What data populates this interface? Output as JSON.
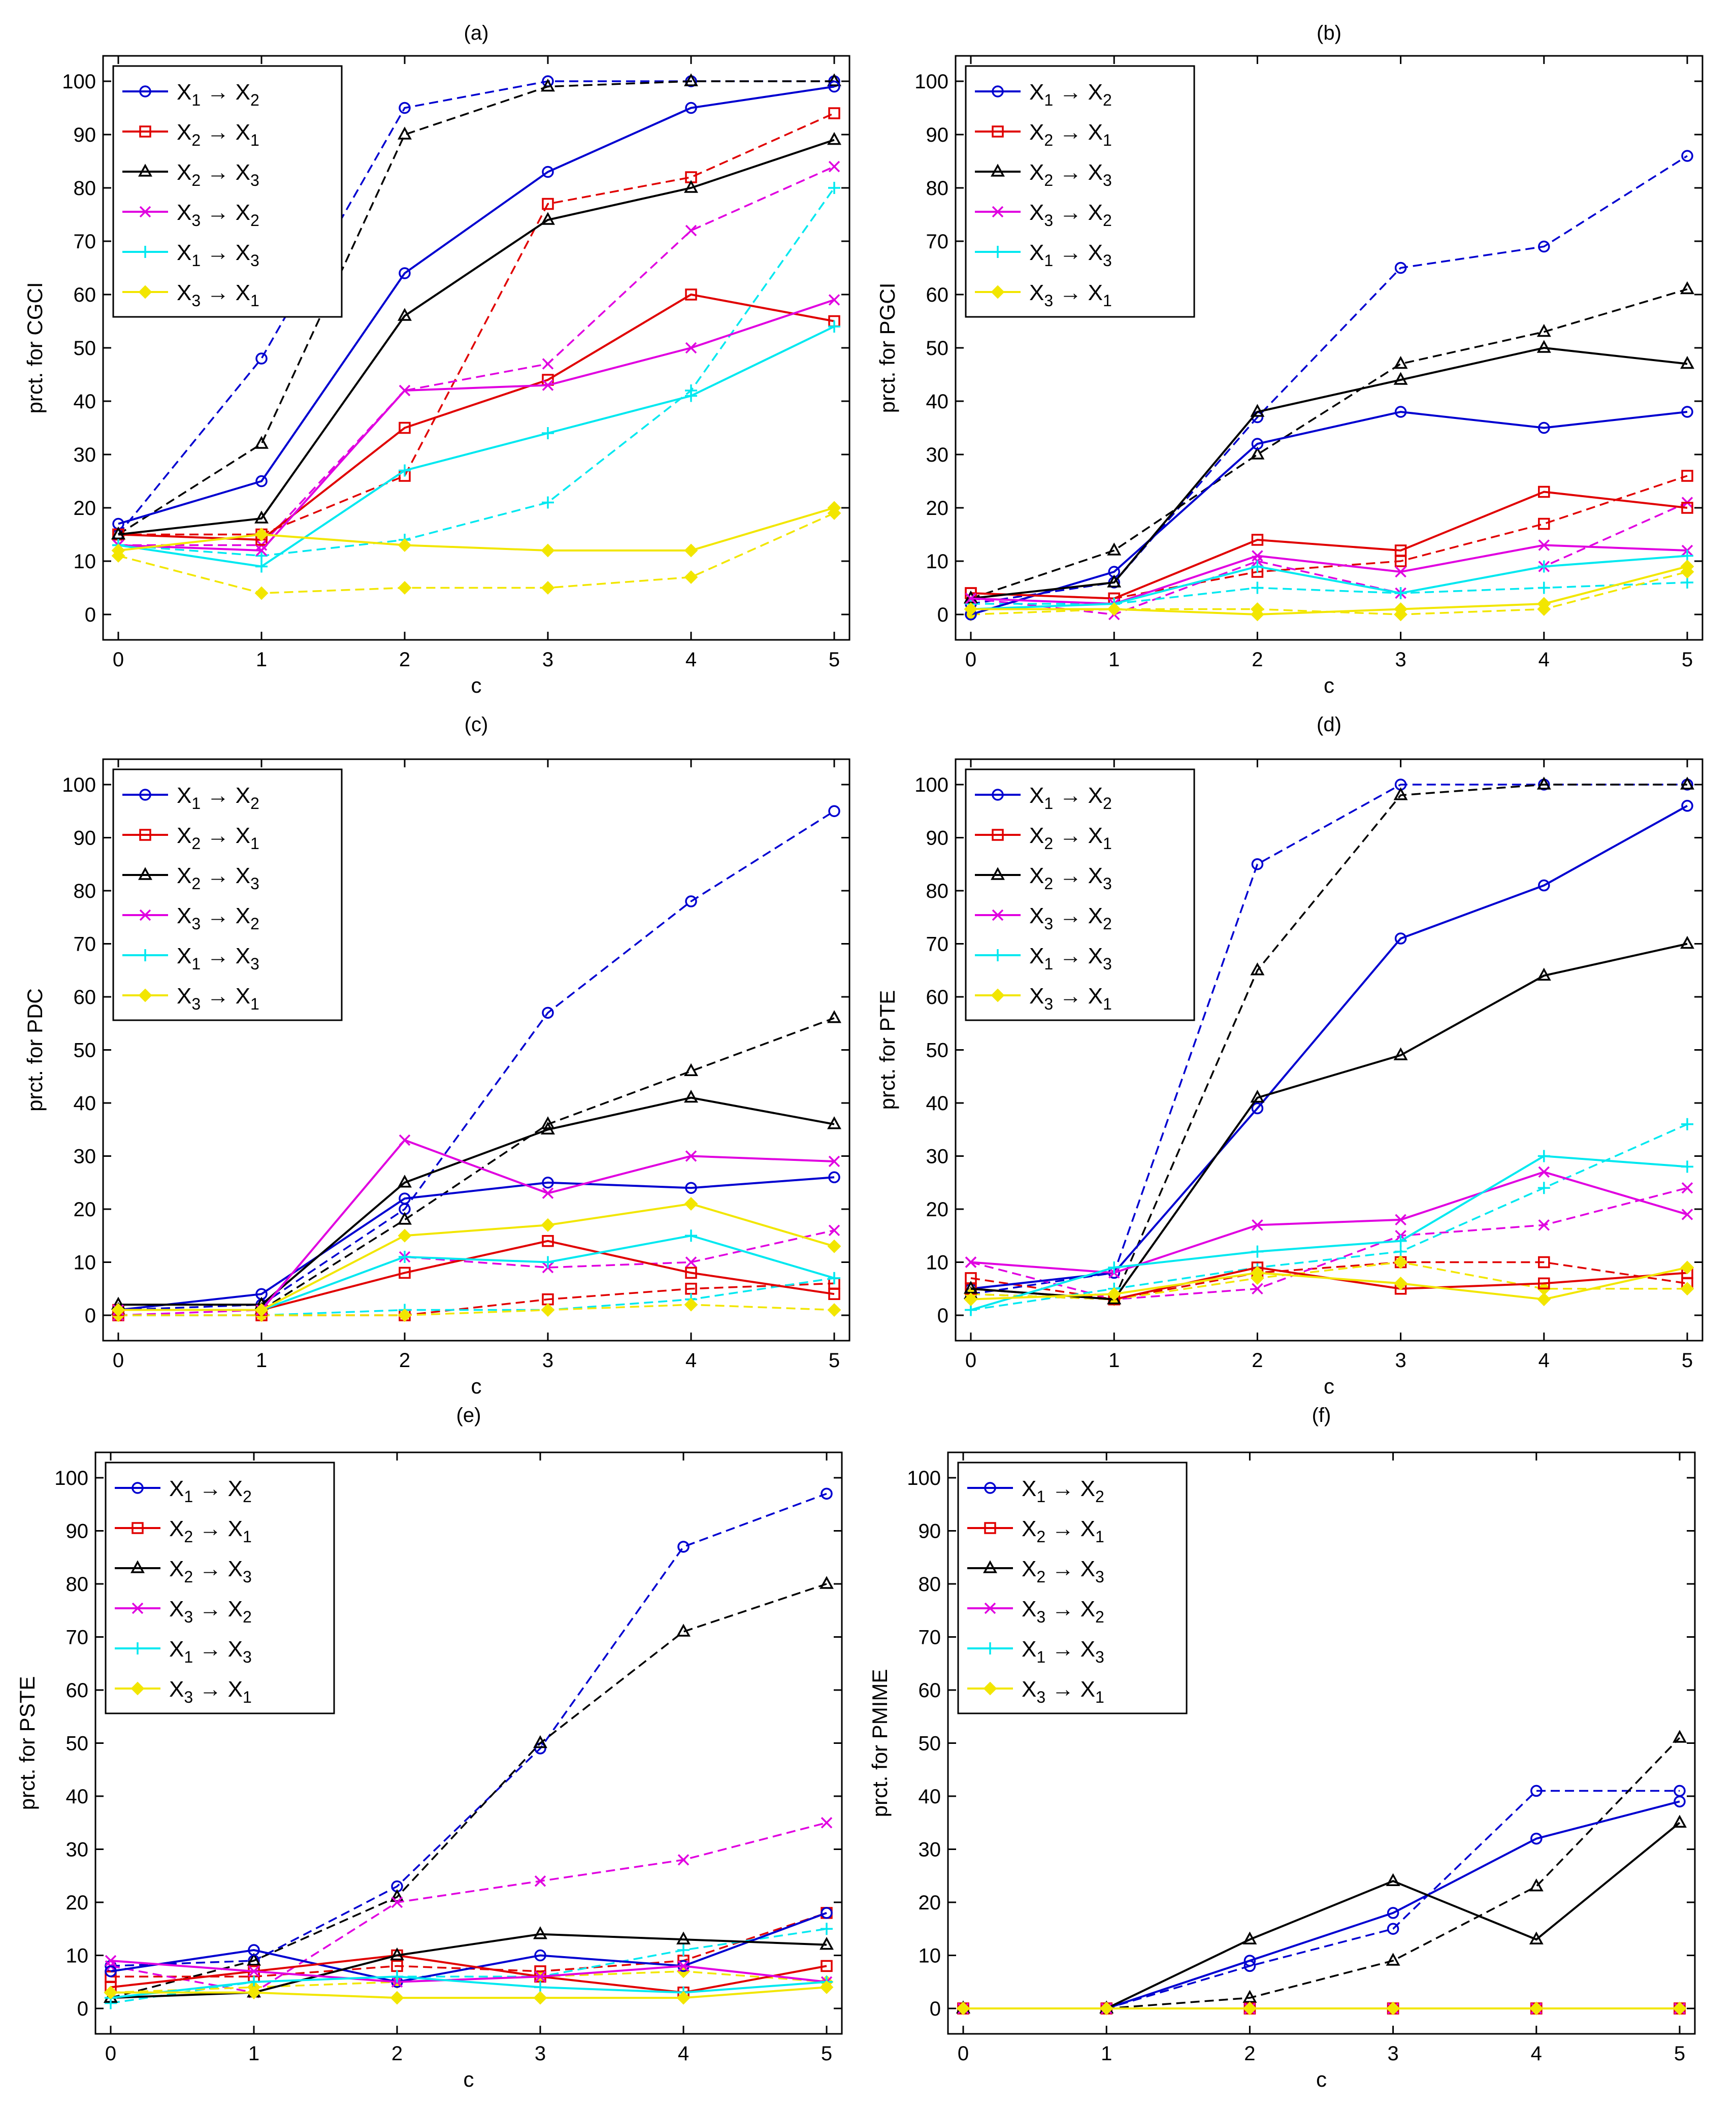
{
  "legend_labels": [
    {
      "a": "X",
      "as": "1",
      "b": "X",
      "bs": "2",
      "color": "#0000d0",
      "marker": "circle"
    },
    {
      "a": "X",
      "as": "2",
      "b": "X",
      "bs": "1",
      "color": "#e00000",
      "marker": "square"
    },
    {
      "a": "X",
      "as": "2",
      "b": "X",
      "bs": "3",
      "color": "#000000",
      "marker": "triangle"
    },
    {
      "a": "X",
      "as": "3",
      "b": "X",
      "bs": "2",
      "color": "#e000e0",
      "marker": "x"
    },
    {
      "a": "X",
      "as": "1",
      "b": "X",
      "bs": "3",
      "color": "#00e8f0",
      "marker": "plus"
    },
    {
      "a": "X",
      "as": "3",
      "b": "X",
      "bs": "1",
      "color": "#f2e600",
      "marker": "diamond"
    }
  ],
  "arrow": "→",
  "chart_data": [
    {
      "type": "line",
      "panel": "(a)",
      "xlabel": "c",
      "ylabel": "prct. for CGCI",
      "x": [
        0,
        1,
        2,
        3,
        4,
        5
      ],
      "xlim": [
        0,
        5
      ],
      "ylim": [
        0,
        100
      ],
      "yticks": [
        0,
        10,
        20,
        30,
        40,
        50,
        60,
        70,
        80,
        90,
        100
      ],
      "series": [
        {
          "name": "X1→X2 solid",
          "values": [
            17,
            25,
            64,
            83,
            95,
            99
          ]
        },
        {
          "name": "X1→X2 dashed",
          "values": [
            15,
            48,
            95,
            100,
            100,
            100
          ]
        },
        {
          "name": "X2→X1 solid",
          "values": [
            15,
            14,
            35,
            44,
            60,
            55
          ]
        },
        {
          "name": "X2→X1 dashed",
          "values": [
            15,
            15,
            26,
            77,
            82,
            94
          ]
        },
        {
          "name": "X2→X3 solid",
          "values": [
            15,
            18,
            56,
            74,
            80,
            89
          ]
        },
        {
          "name": "X2→X3 dashed",
          "values": [
            15,
            32,
            90,
            99,
            100,
            100
          ]
        },
        {
          "name": "X3→X2 solid",
          "values": [
            13,
            12,
            42,
            43,
            50,
            59
          ]
        },
        {
          "name": "X3→X2 dashed",
          "values": [
            13,
            13,
            42,
            47,
            72,
            84
          ]
        },
        {
          "name": "X1→X3 solid",
          "values": [
            13,
            9,
            27,
            34,
            41,
            54
          ]
        },
        {
          "name": "X1→X3 dashed",
          "values": [
            13,
            11,
            14,
            21,
            42,
            80
          ]
        },
        {
          "name": "X3→X1 solid",
          "values": [
            12,
            15,
            13,
            12,
            12,
            20
          ]
        },
        {
          "name": "X3→X1 dashed",
          "values": [
            11,
            4,
            5,
            5,
            7,
            19
          ]
        }
      ]
    },
    {
      "type": "line",
      "panel": "(b)",
      "xlabel": "c",
      "ylabel": "prct. for PGCI",
      "x": [
        0,
        1,
        2,
        3,
        4,
        5
      ],
      "xlim": [
        0,
        5
      ],
      "ylim": [
        0,
        100
      ],
      "yticks": [
        0,
        10,
        20,
        30,
        40,
        50,
        60,
        70,
        80,
        90,
        100
      ],
      "series": [
        {
          "name": "X1→X2 solid",
          "values": [
            0,
            8,
            32,
            38,
            35,
            38
          ]
        },
        {
          "name": "X1→X2 dashed",
          "values": [
            2,
            6,
            37,
            65,
            69,
            86
          ]
        },
        {
          "name": "X2→X1 solid",
          "values": [
            4,
            3,
            14,
            12,
            23,
            20
          ]
        },
        {
          "name": "X2→X1 dashed",
          "values": [
            4,
            3,
            8,
            10,
            17,
            26
          ]
        },
        {
          "name": "X2→X3 solid",
          "values": [
            3,
            6,
            38,
            44,
            50,
            47
          ]
        },
        {
          "name": "X2→X3 dashed",
          "values": [
            3,
            12,
            30,
            47,
            53,
            61
          ]
        },
        {
          "name": "X3→X2 solid",
          "values": [
            3,
            2,
            11,
            8,
            13,
            12
          ]
        },
        {
          "name": "X3→X2 dashed",
          "values": [
            3,
            0,
            10,
            4,
            9,
            21
          ]
        },
        {
          "name": "X1→X3 solid",
          "values": [
            1,
            2,
            9,
            4,
            9,
            11
          ]
        },
        {
          "name": "X1→X3 dashed",
          "values": [
            2,
            2,
            5,
            4,
            5,
            6
          ]
        },
        {
          "name": "X3→X1 solid",
          "values": [
            1,
            1,
            0,
            1,
            2,
            9
          ]
        },
        {
          "name": "X3→X1 dashed",
          "values": [
            0,
            1,
            1,
            0,
            1,
            8
          ]
        }
      ]
    },
    {
      "type": "line",
      "panel": "(c)",
      "xlabel": "c",
      "ylabel": "prct. for PDC",
      "x": [
        0,
        1,
        2,
        3,
        4,
        5
      ],
      "xlim": [
        0,
        5
      ],
      "ylim": [
        0,
        100
      ],
      "yticks": [
        0,
        10,
        20,
        30,
        40,
        50,
        60,
        70,
        80,
        90,
        100
      ],
      "series": [
        {
          "name": "X1→X2 solid",
          "values": [
            1,
            4,
            22,
            25,
            24,
            26
          ]
        },
        {
          "name": "X1→X2 dashed",
          "values": [
            1,
            2,
            20,
            57,
            78,
            95
          ]
        },
        {
          "name": "X2→X1 solid",
          "values": [
            1,
            1,
            8,
            14,
            8,
            4
          ]
        },
        {
          "name": "X2→X1 dashed",
          "values": [
            0,
            0,
            0,
            3,
            5,
            6
          ]
        },
        {
          "name": "X2→X3 solid",
          "values": [
            2,
            2,
            25,
            35,
            41,
            36
          ]
        },
        {
          "name": "X2→X3 dashed",
          "values": [
            1,
            1,
            18,
            36,
            46,
            56
          ]
        },
        {
          "name": "X3→X2 solid",
          "values": [
            1,
            1,
            33,
            23,
            30,
            29
          ]
        },
        {
          "name": "X3→X2 dashed",
          "values": [
            0,
            1,
            11,
            9,
            10,
            16
          ]
        },
        {
          "name": "X1→X3 solid",
          "values": [
            1,
            1,
            11,
            10,
            15,
            7
          ]
        },
        {
          "name": "X1→X3 dashed",
          "values": [
            0,
            0,
            1,
            1,
            3,
            7
          ]
        },
        {
          "name": "X3→X1 solid",
          "values": [
            1,
            1,
            15,
            17,
            21,
            13
          ]
        },
        {
          "name": "X3→X1 dashed",
          "values": [
            0,
            0,
            0,
            1,
            2,
            1
          ]
        }
      ]
    },
    {
      "type": "line",
      "panel": "(d)",
      "xlabel": "c",
      "ylabel": "prct. for PTE",
      "x": [
        0,
        1,
        2,
        3,
        4,
        5
      ],
      "xlim": [
        0,
        5
      ],
      "ylim": [
        0,
        100
      ],
      "yticks": [
        0,
        10,
        20,
        30,
        40,
        50,
        60,
        70,
        80,
        90,
        100
      ],
      "series": [
        {
          "name": "X1→X2 solid",
          "values": [
            5,
            8,
            39,
            71,
            81,
            96
          ]
        },
        {
          "name": "X1→X2 dashed",
          "values": [
            4,
            8,
            85,
            100,
            100,
            100
          ]
        },
        {
          "name": "X2→X1 solid",
          "values": [
            5,
            3,
            9,
            5,
            6,
            8
          ]
        },
        {
          "name": "X2→X1 dashed",
          "values": [
            7,
            3,
            8,
            10,
            10,
            6
          ]
        },
        {
          "name": "X2→X3 solid",
          "values": [
            5,
            3,
            41,
            49,
            64,
            70
          ]
        },
        {
          "name": "X2→X3 dashed",
          "values": [
            4,
            3,
            65,
            98,
            100,
            100
          ]
        },
        {
          "name": "X3→X2 solid",
          "values": [
            10,
            8,
            17,
            18,
            27,
            19
          ]
        },
        {
          "name": "X3→X2 dashed",
          "values": [
            10,
            3,
            5,
            15,
            17,
            24
          ]
        },
        {
          "name": "X1→X3 solid",
          "values": [
            1,
            9,
            12,
            14,
            30,
            28
          ]
        },
        {
          "name": "X1→X3 dashed",
          "values": [
            1,
            5,
            9,
            12,
            24,
            36
          ]
        },
        {
          "name": "X3→X1 solid",
          "values": [
            3,
            4,
            8,
            6,
            3,
            9
          ]
        },
        {
          "name": "X3→X1 dashed",
          "values": [
            4,
            3,
            7,
            10,
            5,
            5
          ]
        }
      ]
    },
    {
      "type": "line",
      "panel": "(e)",
      "xlabel": "c",
      "ylabel": "prct. for PSTE",
      "x": [
        0,
        1,
        2,
        3,
        4,
        5
      ],
      "xlim": [
        0,
        5
      ],
      "ylim": [
        0,
        100
      ],
      "yticks": [
        0,
        10,
        20,
        30,
        40,
        50,
        60,
        70,
        80,
        90,
        100
      ],
      "series": [
        {
          "name": "X1→X2 solid",
          "values": [
            7,
            11,
            5,
            10,
            8,
            18
          ]
        },
        {
          "name": "X1→X2 dashed",
          "values": [
            8,
            9,
            23,
            49,
            87,
            97
          ]
        },
        {
          "name": "X2→X1 solid",
          "values": [
            4,
            7,
            10,
            6,
            3,
            8
          ]
        },
        {
          "name": "X2→X1 dashed",
          "values": [
            6,
            6,
            8,
            7,
            9,
            18
          ]
        },
        {
          "name": "X2→X3 solid",
          "values": [
            2,
            3,
            10,
            14,
            13,
            12
          ]
        },
        {
          "name": "X2→X3 dashed",
          "values": [
            2,
            9,
            21,
            50,
            71,
            80
          ]
        },
        {
          "name": "X3→X2 solid",
          "values": [
            9,
            7,
            5,
            6,
            8,
            5
          ]
        },
        {
          "name": "X3→X2 dashed",
          "values": [
            8,
            3,
            20,
            24,
            28,
            35
          ]
        },
        {
          "name": "X1→X3 solid",
          "values": [
            2,
            5,
            6,
            4,
            3,
            5
          ]
        },
        {
          "name": "X1→X3 dashed",
          "values": [
            1,
            5,
            6,
            6,
            11,
            15
          ]
        },
        {
          "name": "X3→X1 solid",
          "values": [
            3,
            3,
            2,
            2,
            2,
            4
          ]
        },
        {
          "name": "X3→X1 dashed",
          "values": [
            3,
            4,
            5,
            6,
            7,
            5
          ]
        }
      ]
    },
    {
      "type": "line",
      "panel": "(f)",
      "xlabel": "c",
      "ylabel": "prct. for PMIME",
      "x": [
        0,
        1,
        2,
        3,
        4,
        5
      ],
      "xlim": [
        0,
        5
      ],
      "ylim": [
        0,
        100
      ],
      "yticks": [
        0,
        10,
        20,
        30,
        40,
        50,
        60,
        70,
        80,
        90,
        100
      ],
      "series": [
        {
          "name": "X1→X2 solid",
          "values": [
            0,
            0,
            9,
            18,
            32,
            39
          ]
        },
        {
          "name": "X1→X2 dashed",
          "values": [
            0,
            0,
            8,
            15,
            41,
            41
          ]
        },
        {
          "name": "X2→X1 solid",
          "values": [
            0,
            0,
            0,
            0,
            0,
            0
          ]
        },
        {
          "name": "X2→X1 dashed",
          "values": [
            0,
            0,
            0,
            0,
            0,
            0
          ]
        },
        {
          "name": "X2→X3 solid",
          "values": [
            0,
            0,
            13,
            24,
            13,
            35
          ]
        },
        {
          "name": "X2→X3 dashed",
          "values": [
            0,
            0,
            2,
            9,
            23,
            51
          ]
        },
        {
          "name": "X3→X2 solid",
          "values": [
            0,
            0,
            0,
            0,
            0,
            0
          ]
        },
        {
          "name": "X3→X2 dashed",
          "values": [
            0,
            0,
            0,
            0,
            0,
            0
          ]
        },
        {
          "name": "X1→X3 solid",
          "values": [
            0,
            0,
            0,
            0,
            0,
            0
          ]
        },
        {
          "name": "X1→X3 dashed",
          "values": [
            0,
            0,
            0,
            0,
            0,
            0
          ]
        },
        {
          "name": "X3→X1 solid",
          "values": [
            0,
            0,
            0,
            0,
            0,
            0
          ]
        },
        {
          "name": "X3→X1 dashed",
          "values": [
            0,
            0,
            0,
            0,
            0,
            0
          ]
        }
      ]
    }
  ]
}
